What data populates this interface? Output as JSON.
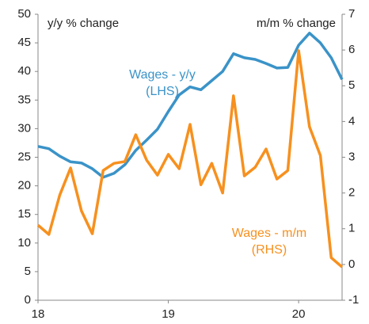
{
  "chart_data": {
    "type": "line",
    "y_axis_label": "y/y % change",
    "y2_axis_label": "m/m % change",
    "x": [
      18,
      18.0833,
      18.1667,
      18.25,
      18.3333,
      18.4167,
      18.5,
      18.5833,
      18.6667,
      18.75,
      18.8333,
      18.9167,
      19,
      19.0833,
      19.1667,
      19.25,
      19.3333,
      19.4167,
      19.5,
      19.5833,
      19.6667,
      19.75,
      19.8333,
      19.9167,
      20,
      20.0833,
      20.1667,
      20.25,
      20.3333
    ],
    "xlim": [
      18,
      20.3333
    ],
    "xticks": [
      18,
      19,
      20
    ],
    "ylim": [
      0,
      50
    ],
    "yticks": [
      0,
      5,
      10,
      15,
      20,
      25,
      30,
      35,
      40,
      45,
      50
    ],
    "y2lim": [
      -1,
      7
    ],
    "y2ticks": [
      -1,
      0,
      1,
      2,
      3,
      4,
      5,
      6,
      7
    ],
    "grid": false,
    "series": [
      {
        "name": "Wages - y/y",
        "color": "#3a93c8",
        "values": [
          26.9,
          26.5,
          25.2,
          24.2,
          24.0,
          23.0,
          21.5,
          22.2,
          23.7,
          26.2,
          28.0,
          29.9,
          33.0,
          35.9,
          37.3,
          36.8,
          38.4,
          40.0,
          43.1,
          42.4,
          42.1,
          41.4,
          40.6,
          40.7,
          44.6,
          46.7,
          45.0,
          42.4,
          38.6
        ]
      },
      {
        "name": "Wages - m/m",
        "color": "#f7901e",
        "axis": "y2",
        "values": [
          1.1,
          0.84,
          1.94,
          2.7,
          1.5,
          0.86,
          2.63,
          2.83,
          2.88,
          3.63,
          2.92,
          2.5,
          3.08,
          2.68,
          3.92,
          2.23,
          2.83,
          2.0,
          4.72,
          2.48,
          2.72,
          3.23,
          2.39,
          2.63,
          5.98,
          3.85,
          3.05,
          0.19,
          -0.07
        ]
      }
    ],
    "annotations": [
      {
        "lines": [
          "Wages - y/y",
          "(LHS)"
        ],
        "color": "#3a93c8"
      },
      {
        "lines": [
          "Wages - m/m",
          "(RHS)"
        ],
        "color": "#f7901e"
      }
    ]
  }
}
